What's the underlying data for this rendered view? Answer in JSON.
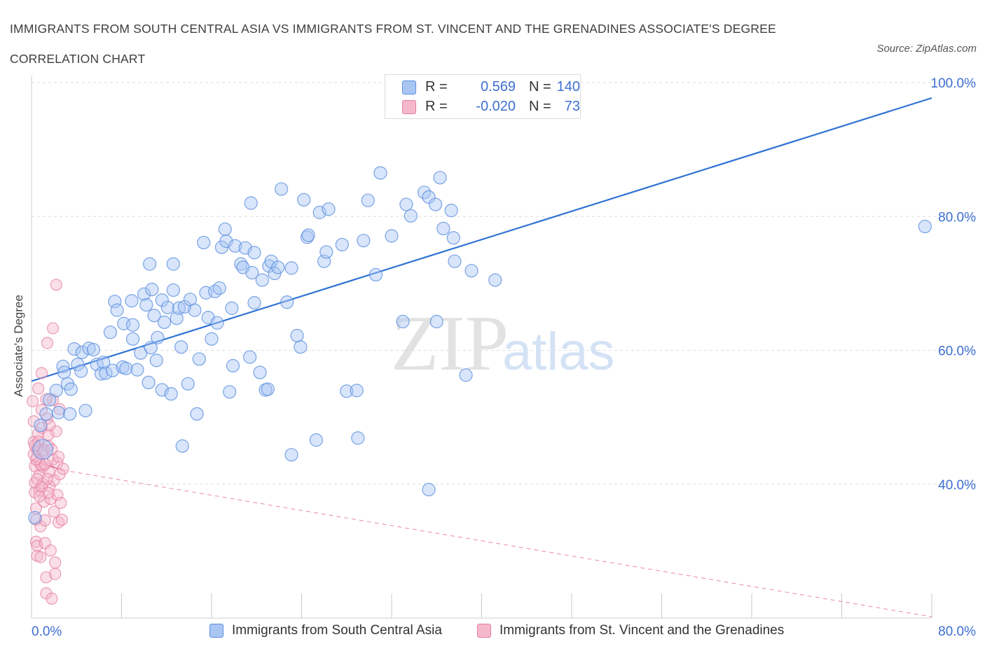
{
  "header": {
    "title": "IMMIGRANTS FROM SOUTH CENTRAL ASIA VS IMMIGRANTS FROM ST. VINCENT AND THE GRENADINES ASSOCIATE'S DEGREE CORRELATION CHART",
    "source": "Source: ZipAtlas.com"
  },
  "watermark": {
    "zip": "ZIP",
    "atlas": "atlas"
  },
  "stats_legend": {
    "r_label": "R =",
    "n_label": "N =",
    "rows": [
      {
        "r": "0.569",
        "n": "140"
      },
      {
        "r": "-0.020",
        "n": "73"
      }
    ]
  },
  "chart_data": {
    "type": "scatter",
    "title": "IMMIGRANTS FROM SOUTH CENTRAL ASIA VS IMMIGRANTS FROM ST. VINCENT AND THE GRENADINES ASSOCIATE'S DEGREE CORRELATION CHART",
    "xlabel": "",
    "ylabel": "Associate's Degree",
    "xlim": [
      0,
      80
    ],
    "ylim": [
      20,
      100
    ],
    "x_ticks": [
      0,
      8,
      16,
      24,
      32,
      40,
      48,
      56,
      64,
      72,
      80
    ],
    "x_tick_labels": [
      {
        "value": 0,
        "label": "0.0%"
      },
      {
        "value": 80,
        "label": "80.0%"
      }
    ],
    "y_tick_labels": [
      {
        "value": 40,
        "label": "40.0%"
      },
      {
        "value": 60,
        "label": "60.0%"
      },
      {
        "value": 80,
        "label": "80.0%"
      },
      {
        "value": 100,
        "label": "100.0%"
      }
    ],
    "grid": "horizontal dashed",
    "legend_position": "bottom-center",
    "colors": {
      "blue": "#5b8fdf",
      "blue_fill": "#a9c6f3",
      "pink": "#e57da0",
      "pink_fill": "#f5b8cb",
      "trend_blue": "#2f72d4",
      "trend_pink": "#e36c92"
    },
    "series": [
      {
        "name": "Immigrants from South Central Asia",
        "color": "#5b8fdf",
        "trend": {
          "x": [
            0,
            80
          ],
          "y": [
            55.4,
            97.7
          ]
        },
        "points": [
          [
            0.3,
            35
          ],
          [
            0.8,
            48.8
          ],
          [
            1.3,
            50.5
          ],
          [
            1.6,
            52.6
          ],
          [
            2.2,
            54
          ],
          [
            2.4,
            50.7
          ],
          [
            2.8,
            57.6
          ],
          [
            2.9,
            56.7
          ],
          [
            3.2,
            55
          ],
          [
            3.4,
            50.5
          ],
          [
            3.5,
            54.2
          ],
          [
            3.8,
            60.2
          ],
          [
            4.1,
            57.9
          ],
          [
            4.4,
            56.9
          ],
          [
            4.5,
            59.7
          ],
          [
            4.8,
            51
          ],
          [
            5.1,
            60.3
          ],
          [
            5.5,
            60.1
          ],
          [
            5.8,
            57.9
          ],
          [
            6.2,
            56.5
          ],
          [
            6.4,
            58.2
          ],
          [
            6.6,
            56.6
          ],
          [
            7.0,
            62.7
          ],
          [
            7.2,
            57
          ],
          [
            7.4,
            67.3
          ],
          [
            7.6,
            66
          ],
          [
            8.1,
            57.5
          ],
          [
            8.2,
            64
          ],
          [
            8.4,
            57.3
          ],
          [
            8.9,
            67.4
          ],
          [
            9.0,
            61.7
          ],
          [
            9.0,
            63.8
          ],
          [
            9.4,
            57.1
          ],
          [
            9.7,
            59.6
          ],
          [
            10.0,
            68.4
          ],
          [
            10.2,
            66.8
          ],
          [
            10.4,
            55.2
          ],
          [
            10.5,
            72.9
          ],
          [
            10.6,
            60.4
          ],
          [
            10.7,
            69.1
          ],
          [
            10.9,
            65.2
          ],
          [
            11.1,
            58.5
          ],
          [
            11.2,
            61.9
          ],
          [
            11.6,
            54.1
          ],
          [
            11.6,
            67.5
          ],
          [
            11.8,
            64.2
          ],
          [
            12.1,
            66.4
          ],
          [
            12.4,
            53.5
          ],
          [
            12.6,
            69
          ],
          [
            12.6,
            72.9
          ],
          [
            12.9,
            64.8
          ],
          [
            13.1,
            66.3
          ],
          [
            13.3,
            60.5
          ],
          [
            13.6,
            66.5
          ],
          [
            13.9,
            55
          ],
          [
            14.1,
            67.6
          ],
          [
            14.5,
            66
          ],
          [
            14.7,
            50.5
          ],
          [
            14.9,
            58.7
          ],
          [
            15.3,
            76.1
          ],
          [
            15.5,
            68.6
          ],
          [
            15.7,
            64.9
          ],
          [
            16.0,
            61.7
          ],
          [
            16.3,
            68.8
          ],
          [
            16.5,
            64.1
          ],
          [
            16.7,
            69.3
          ],
          [
            16.9,
            75.4
          ],
          [
            17.2,
            78.1
          ],
          [
            17.3,
            76.3
          ],
          [
            17.6,
            53.8
          ],
          [
            17.8,
            66.3
          ],
          [
            17.9,
            57.7
          ],
          [
            18.1,
            75.6
          ],
          [
            18.6,
            72.9
          ],
          [
            18.8,
            72.4
          ],
          [
            19.0,
            75.3
          ],
          [
            19.4,
            59
          ],
          [
            19.5,
            82
          ],
          [
            19.6,
            71.6
          ],
          [
            19.8,
            67.1
          ],
          [
            19.8,
            74.6
          ],
          [
            20.3,
            56.7
          ],
          [
            20.5,
            70.5
          ],
          [
            20.8,
            54.1
          ],
          [
            21.0,
            54.2
          ],
          [
            21.1,
            72.6
          ],
          [
            21.3,
            73.3
          ],
          [
            21.6,
            71.5
          ],
          [
            21.9,
            72.4
          ],
          [
            22.2,
            84.1
          ],
          [
            22.7,
            67.2
          ],
          [
            23.1,
            72.3
          ],
          [
            23.6,
            62.2
          ],
          [
            23.9,
            60.5
          ],
          [
            24.2,
            82.5
          ],
          [
            24.5,
            76.9
          ],
          [
            24.6,
            77.2
          ],
          [
            25.3,
            46.6
          ],
          [
            25.6,
            80.6
          ],
          [
            26.0,
            73.3
          ],
          [
            26.2,
            74.7
          ],
          [
            26.4,
            81.1
          ],
          [
            27.6,
            75.8
          ],
          [
            28.0,
            53.9
          ],
          [
            28.9,
            54
          ],
          [
            29.0,
            46.9
          ],
          [
            29.5,
            76.4
          ],
          [
            29.9,
            82.4
          ],
          [
            30.6,
            71.3
          ],
          [
            31.0,
            86.5
          ],
          [
            32.0,
            77.1
          ],
          [
            33.0,
            64.3
          ],
          [
            33.3,
            81.8
          ],
          [
            33.7,
            80.1
          ],
          [
            34.9,
            83.6
          ],
          [
            35.3,
            82.9
          ],
          [
            35.9,
            81.8
          ],
          [
            36.0,
            64.3
          ],
          [
            36.3,
            85.8
          ],
          [
            36.6,
            78.2
          ],
          [
            37.3,
            80.9
          ],
          [
            37.5,
            76.8
          ],
          [
            37.6,
            73.3
          ],
          [
            38.6,
            56.3
          ],
          [
            39.1,
            71.9
          ],
          [
            41.2,
            70.5
          ],
          [
            13.4,
            45.7
          ],
          [
            23.1,
            44.4
          ],
          [
            35.3,
            39.2
          ],
          [
            79.4,
            78.5
          ]
        ],
        "big_points": [
          {
            "x": 1.0,
            "y": 45.2,
            "size": "large"
          }
        ]
      },
      {
        "name": "Immigrants from St. Vincent and the Grenadines",
        "color": "#e57da0",
        "trend": {
          "x": [
            0,
            2.8
          ],
          "y": [
            43.6,
            42.1
          ],
          "dashed_extension": {
            "x": [
              2.8,
              80
            ],
            "y": [
              42.1,
              20.2
            ]
          }
        },
        "points": [
          [
            0.1,
            52.4
          ],
          [
            0.2,
            49.4
          ],
          [
            0.2,
            46.3
          ],
          [
            0.2,
            44.5
          ],
          [
            0.3,
            42.7
          ],
          [
            0.3,
            40.2
          ],
          [
            0.3,
            38.8
          ],
          [
            0.4,
            36.4
          ],
          [
            0.4,
            34.7
          ],
          [
            0.4,
            31.4
          ],
          [
            0.5,
            30.8
          ],
          [
            0.5,
            29.3
          ],
          [
            0.6,
            54.3
          ],
          [
            0.6,
            47.6
          ],
          [
            0.6,
            45.6
          ],
          [
            0.7,
            43.4
          ],
          [
            0.7,
            41.4
          ],
          [
            0.7,
            39.1
          ],
          [
            0.8,
            33.7
          ],
          [
            0.8,
            29.1
          ],
          [
            0.9,
            56.6
          ],
          [
            0.9,
            51.1
          ],
          [
            0.9,
            48.4
          ],
          [
            1.0,
            44.8
          ],
          [
            1.0,
            42.6
          ],
          [
            1.0,
            40.1
          ],
          [
            1.1,
            37.4
          ],
          [
            1.2,
            34.6
          ],
          [
            1.2,
            31.2
          ],
          [
            1.3,
            26.1
          ],
          [
            1.3,
            23.7
          ],
          [
            1.4,
            61.1
          ],
          [
            1.4,
            49.8
          ],
          [
            1.5,
            47.4
          ],
          [
            1.5,
            45.7
          ],
          [
            1.6,
            41.8
          ],
          [
            1.6,
            39.7
          ],
          [
            1.7,
            37.8
          ],
          [
            1.7,
            30.1
          ],
          [
            1.8,
            22.9
          ],
          [
            1.9,
            63.3
          ],
          [
            1.9,
            52.6
          ],
          [
            1.9,
            43.7
          ],
          [
            2.0,
            40.6
          ],
          [
            2.0,
            35.9
          ],
          [
            2.1,
            28.3
          ],
          [
            2.1,
            26.6
          ],
          [
            2.2,
            69.8
          ],
          [
            2.2,
            47.9
          ],
          [
            2.3,
            43.2
          ],
          [
            2.3,
            38.4
          ],
          [
            2.4,
            34.3
          ],
          [
            2.5,
            51.2
          ],
          [
            2.5,
            41.5
          ],
          [
            2.6,
            37.2
          ],
          [
            2.7,
            34.7
          ],
          [
            2.8,
            42.3
          ],
          [
            0.5,
            45.2
          ],
          [
            0.6,
            46.4
          ],
          [
            0.8,
            42.9
          ],
          [
            0.9,
            39.6
          ],
          [
            1.1,
            45.1
          ],
          [
            1.2,
            43
          ],
          [
            1.4,
            40.8
          ],
          [
            1.5,
            38.7
          ],
          [
            0.3,
            45.8
          ],
          [
            0.4,
            43.7
          ],
          [
            0.5,
            40.8
          ],
          [
            0.7,
            38.2
          ],
          [
            1.8,
            45.2
          ],
          [
            2.4,
            44.1
          ],
          [
            1.3,
            52.7
          ],
          [
            1.6,
            48.8
          ]
        ]
      }
    ]
  },
  "bottom_legend": [
    {
      "label": "Immigrants from South Central Asia"
    },
    {
      "label": "Immigrants from St. Vincent and the Grenadines"
    }
  ]
}
